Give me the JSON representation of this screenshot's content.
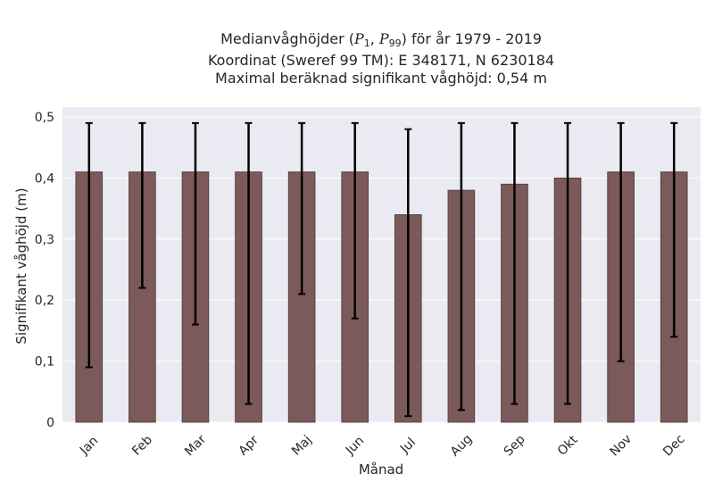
{
  "chart_data": {
    "type": "bar",
    "title_lines": [
      "Medianvåghöjder (P1, P99) för år 1979 - 2019",
      "Koordinat (Sweref 99 TM): E 348171, N 6230184",
      "Maximal beräknad signifikant våghöjd: 0,54 m"
    ],
    "title_parts": {
      "prefix": "Medianvåghöjder (",
      "p": "P",
      "sub1": "1",
      "sep": ", ",
      "sub99": "99",
      "suffix": ") för år 1979 - 2019"
    },
    "xlabel": "Månad",
    "ylabel": "Signifikant våghöjd (m)",
    "categories": [
      "Jan",
      "Feb",
      "Mar",
      "Apr",
      "Maj",
      "Jun",
      "Jul",
      "Aug",
      "Sep",
      "Okt",
      "Nov",
      "Dec"
    ],
    "values": [
      0.41,
      0.41,
      0.41,
      0.41,
      0.41,
      0.41,
      0.34,
      0.38,
      0.39,
      0.4,
      0.41,
      0.41
    ],
    "p1": [
      0.09,
      0.22,
      0.16,
      0.03,
      0.21,
      0.17,
      0.01,
      0.02,
      0.03,
      0.03,
      0.1,
      0.14
    ],
    "p99": [
      0.49,
      0.49,
      0.49,
      0.49,
      0.49,
      0.49,
      0.48,
      0.49,
      0.49,
      0.49,
      0.49,
      0.49
    ],
    "ylim": [
      0,
      0.5
    ],
    "yticks": [
      "0",
      "0,1",
      "0,2",
      "0,3",
      "0,4",
      "0,5"
    ],
    "grid": true,
    "colors": {
      "bar": "#7b5a59",
      "bar_edge": "#4a3a39",
      "errorbar": "#000000",
      "plot_background": "#eaeaf2",
      "grid": "#ffffff"
    }
  }
}
